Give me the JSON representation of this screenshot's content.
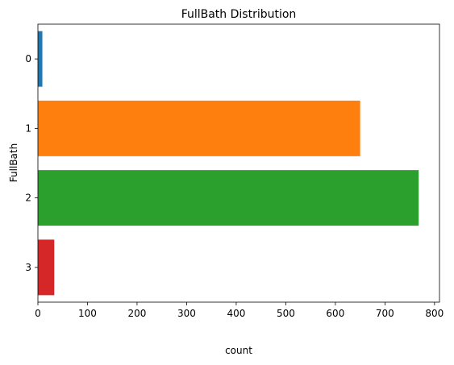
{
  "chart_data": {
    "type": "bar",
    "orientation": "horizontal",
    "title": "FullBath Distribution",
    "xlabel": "count",
    "ylabel": "FullBath",
    "categories": [
      "0",
      "1",
      "2",
      "3"
    ],
    "values": [
      9,
      650,
      768,
      33
    ],
    "colors": [
      "#1f77b4",
      "#ff7f0e",
      "#2ca02c",
      "#d62728"
    ],
    "xlim": [
      0,
      810
    ],
    "xticks": [
      0,
      100,
      200,
      300,
      400,
      500,
      600,
      700,
      800
    ],
    "grid": false,
    "legend": "none"
  }
}
